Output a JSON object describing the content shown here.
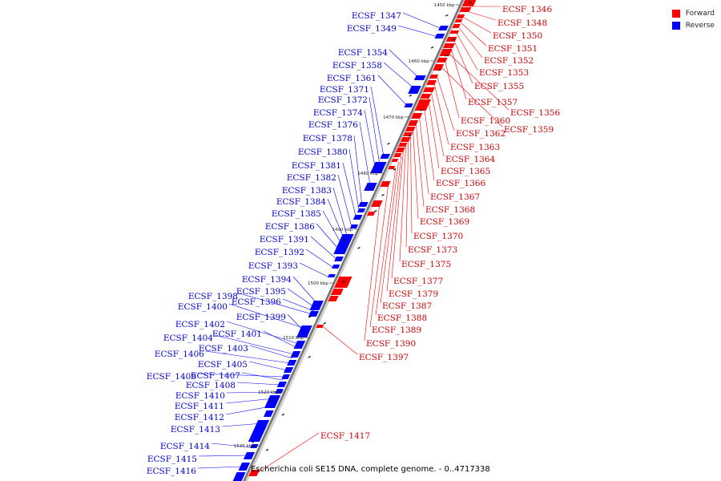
{
  "legend": [
    {
      "label": "Forward",
      "color": "#ff0000"
    },
    {
      "label": "Reverse",
      "color": "#0000ff"
    }
  ],
  "caption": "Escherichia coli SE15 DNA, complete genome. - 0..4717338",
  "ticks": [
    "1450 kbp",
    "1460 kbp",
    "1470 kbp",
    "1480 kbp",
    "1490 kbp",
    "1500 kbp",
    "1510 kbp",
    "1520 kbp",
    "1530 kbp"
  ],
  "forward_labels": [
    "ECSF_1346",
    "ECSF_1348",
    "ECSF_1350",
    "ECSF_1351",
    "ECSF_1352",
    "ECSF_1353",
    "ECSF_1355",
    "ECSF_1357",
    "ECSF_1356",
    "ECSF_1360",
    "ECSF_1359",
    "ECSF_1362",
    "ECSF_1363",
    "ECSF_1364",
    "ECSF_1365",
    "ECSF_1366",
    "ECSF_1367",
    "ECSF_1368",
    "ECSF_1369",
    "ECSF_1370",
    "ECSF_1373",
    "ECSF_1375",
    "ECSF_1377",
    "ECSF_1379",
    "ECSF_1387",
    "ECSF_1388",
    "ECSF_1389",
    "ECSF_1390",
    "ECSF_1397",
    "ECSF_1417"
  ],
  "reverse_labels": [
    "ECSF_1347",
    "ECSF_1349",
    "ECSF_1354",
    "ECSF_1358",
    "ECSF_1361",
    "ECSF_1371",
    "ECSF_1372",
    "ECSF_1374",
    "ECSF_1376",
    "ECSF_1378",
    "ECSF_1380",
    "ECSF_1381",
    "ECSF_1382",
    "ECSF_1383",
    "ECSF_1384",
    "ECSF_1385",
    "ECSF_1386",
    "ECSF_1391",
    "ECSF_1392",
    "ECSF_1393",
    "ECSF_1394",
    "ECSF_1395",
    "ECSF_1396",
    "ECSF_1398",
    "ECSF_1400",
    "ECSF_1399",
    "ECSF_1402",
    "ECSF_1401",
    "ECSF_1404",
    "ECSF_1403",
    "ECSF_1406",
    "ECSF_1405",
    "ECSF_1409",
    "ECSF_1407",
    "ECSF_1408",
    "ECSF_1410",
    "ECSF_1411",
    "ECSF_1412",
    "ECSF_1413",
    "ECSF_1414",
    "ECSF_1415",
    "ECSF_1416"
  ]
}
